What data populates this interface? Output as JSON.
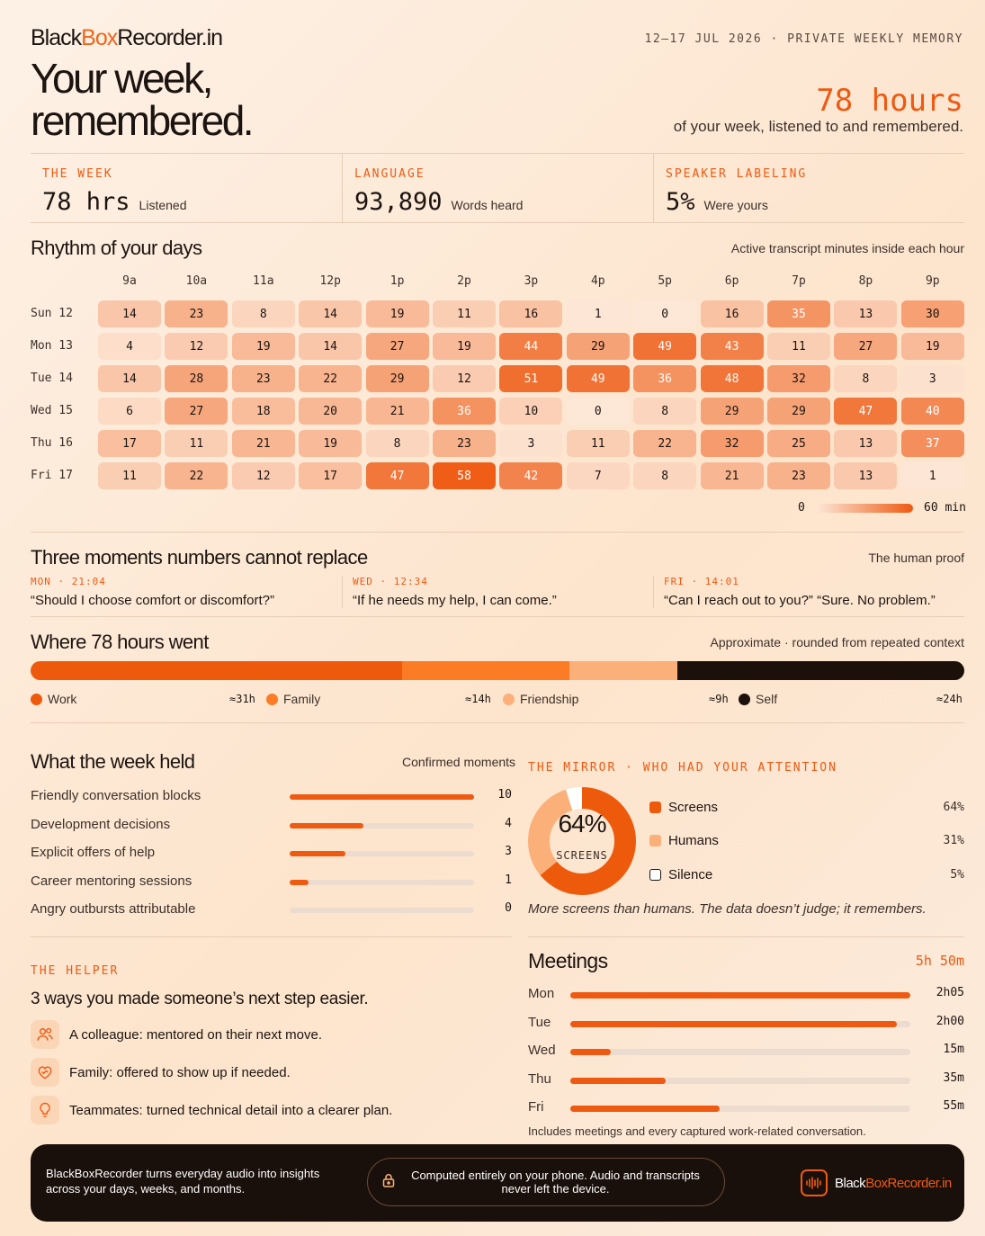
{
  "brand": {
    "pre": "Black",
    "mid": "Box",
    "post": "Recorder.in"
  },
  "hero": {
    "line1": "Your week,",
    "line2": "remembered."
  },
  "header": {
    "date_range": "12–17 JUL 2026 · PRIVATE WEEKLY MEMORY",
    "big_hours": "78 hours",
    "big_sub": "of your week, listened to and remembered."
  },
  "kpis": [
    {
      "label": "THE WEEK",
      "value": "78 hrs",
      "sub": "Listened"
    },
    {
      "label": "LANGUAGE",
      "value": "93,890",
      "sub": "Words heard"
    },
    {
      "label": "SPEAKER LABELING",
      "value": "5%",
      "sub": "Were yours"
    }
  ],
  "rhythm": {
    "title": "Rhythm of your days",
    "note": "Active transcript minutes inside each hour",
    "hours": [
      "9a",
      "10a",
      "11a",
      "12p",
      "1p",
      "2p",
      "3p",
      "4p",
      "5p",
      "6p",
      "7p",
      "8p",
      "9p"
    ],
    "days": [
      {
        "label": "Sun 12",
        "values": [
          14,
          23,
          8,
          14,
          19,
          11,
          16,
          1,
          0,
          16,
          35,
          13,
          30
        ]
      },
      {
        "label": "Mon 13",
        "values": [
          4,
          12,
          19,
          14,
          27,
          19,
          44,
          29,
          49,
          43,
          11,
          27,
          19
        ]
      },
      {
        "label": "Tue 14",
        "values": [
          14,
          28,
          23,
          22,
          29,
          12,
          51,
          49,
          36,
          48,
          32,
          8,
          3
        ]
      },
      {
        "label": "Wed 15",
        "values": [
          6,
          27,
          18,
          20,
          21,
          36,
          10,
          0,
          8,
          29,
          29,
          47,
          40
        ]
      },
      {
        "label": "Thu 16",
        "values": [
          17,
          11,
          21,
          19,
          8,
          23,
          3,
          11,
          22,
          32,
          25,
          13,
          37
        ]
      },
      {
        "label": "Fri 17",
        "values": [
          11,
          22,
          12,
          17,
          47,
          58,
          42,
          7,
          8,
          21,
          23,
          13,
          1
        ]
      }
    ],
    "scale_min": "0",
    "scale_max": "60 min",
    "max": 60
  },
  "moments": {
    "title": "Three moments numbers cannot replace",
    "note": "The human proof",
    "items": [
      {
        "time": "MON · 21:04",
        "quote": "“Should I choose comfort or discomfort?”"
      },
      {
        "time": "WED · 12:34",
        "quote": "“If he needs my help, I can come.”"
      },
      {
        "time": "FRI · 14:01",
        "quote": "“Can I reach out to you?” “Sure. No problem.”"
      }
    ]
  },
  "where": {
    "title": "Where 78 hours went",
    "note": "Approximate · rounded from repeated context",
    "segments": [
      {
        "name": "Work",
        "hours": "≈31h",
        "value": 31,
        "color": "#ee5a0c"
      },
      {
        "name": "Family",
        "hours": "≈14h",
        "value": 14,
        "color": "#fb7c24"
      },
      {
        "name": "Friendship",
        "hours": "≈9h",
        "value": 9,
        "color": "#fbb07a"
      },
      {
        "name": "Self",
        "hours": "≈24h",
        "value": 24,
        "color": "#1c100a"
      }
    ]
  },
  "held": {
    "title": "What the week held",
    "note": "Confirmed moments",
    "max": 10,
    "items": [
      {
        "label": "Friendly conversation blocks",
        "value": 10
      },
      {
        "label": "Development decisions",
        "value": 4
      },
      {
        "label": "Explicit offers of help",
        "value": 3
      },
      {
        "label": "Career mentoring sessions",
        "value": 1
      },
      {
        "label": "Angry outbursts attributable",
        "value": 0
      }
    ]
  },
  "mirror": {
    "title": "THE MIRROR · WHO HAD YOUR ATTENTION",
    "center_value": "64%",
    "center_label": "SCREENS",
    "items": [
      {
        "name": "Screens",
        "pct": "64%",
        "value": 64,
        "color": "#ee5a0c"
      },
      {
        "name": "Humans",
        "pct": "31%",
        "value": 31,
        "color": "#fbb07a"
      },
      {
        "name": "Silence",
        "pct": "5%",
        "value": 5,
        "color": "#ffffff"
      }
    ],
    "caption": "More screens than humans. The data doesn’t judge; it remembers."
  },
  "helper": {
    "kicker": "THE HELPER",
    "title": "3 ways you made someone’s next step easier.",
    "items": [
      {
        "icon": "people-icon",
        "text": "A colleague: mentored on their next move."
      },
      {
        "icon": "heart-handshake-icon",
        "text": "Family: offered to show up if needed."
      },
      {
        "icon": "lightbulb-icon",
        "text": "Teammates: turned technical detail into a clearer plan."
      }
    ]
  },
  "meetings": {
    "title": "Meetings",
    "total": "5h 50m",
    "max_minutes": 125,
    "items": [
      {
        "day": "Mon",
        "label": "2h05",
        "minutes": 125
      },
      {
        "day": "Tue",
        "label": "2h00",
        "minutes": 120
      },
      {
        "day": "Wed",
        "label": "15m",
        "minutes": 15
      },
      {
        "day": "Thu",
        "label": "35m",
        "minutes": 35
      },
      {
        "day": "Fri",
        "label": "55m",
        "minutes": 55
      }
    ],
    "note": "Includes meetings and every captured work-related conversation."
  },
  "footer": {
    "blurb": "BlackBoxRecorder turns everyday audio into insights across your days, weeks, and months.",
    "privacy": "Computed entirely on your phone. Audio and transcripts never left the device.",
    "brand_pre": "Black",
    "brand_mid": "Box",
    "brand_post": "Recorder.in"
  }
}
